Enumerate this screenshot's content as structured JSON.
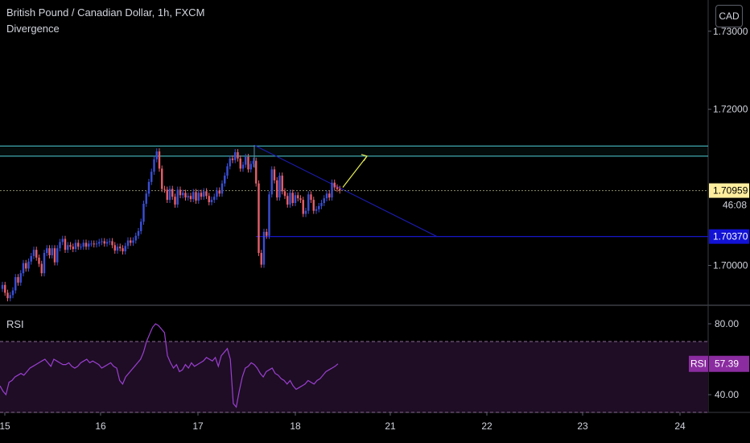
{
  "legend": {
    "symbol": "British Pound / Canadian Dollar, 1h, FXCM",
    "indicator": "Divergence"
  },
  "currency_button": "CAD",
  "rsi_pane": {
    "label": "RSI",
    "value_tag_name": "RSI",
    "value_tag_value": "57.39",
    "axis_ticks": [
      "80.00",
      "40.00"
    ]
  },
  "price_axis": {
    "ticks": [
      "1.73000",
      "1.72000",
      "1.70000"
    ],
    "last_price": "1.70959",
    "countdown": "46:08",
    "line_price": "1.70370"
  },
  "time_axis": {
    "ticks": [
      "15",
      "16",
      "17",
      "18",
      "21",
      "22",
      "23",
      "24"
    ]
  },
  "colors": {
    "up": "#3a4fd6",
    "down": "#e5606a",
    "resistance": "#4dd0d6",
    "trendline": "#1a1aa8",
    "support": "#1a1ae0",
    "projection_arrow": "#e6ee53",
    "rsi_line": "#9b3fd1",
    "rsi_band": "#1e0d24",
    "last_price_tag": "#ffee9e",
    "line_price_tag": "#1212d6",
    "rsi_tag": "#8b2ca0"
  },
  "chart_data": {
    "type": "candlestick",
    "symbol": "GBP/CAD",
    "timeframe": "1h",
    "ylim": [
      1.695,
      1.734
    ],
    "y_ticks": [
      1.73,
      1.72,
      1.7
    ],
    "last_price": 1.70959,
    "candles_close": [
      1.6975,
      1.6965,
      1.6958,
      1.6962,
      1.6968,
      1.6985,
      1.6978,
      1.699,
      1.7003,
      1.6996,
      1.7005,
      1.7012,
      1.702,
      1.701,
      1.7002,
      1.699,
      1.7016,
      1.7022,
      1.7013,
      1.7022,
      1.7004,
      1.7022,
      1.703,
      1.7034,
      1.702,
      1.7026,
      1.7024,
      1.7021,
      1.7029,
      1.7024,
      1.7024,
      1.7029,
      1.7024,
      1.7028,
      1.7028,
      1.7027,
      1.7028,
      1.703,
      1.7031,
      1.7028,
      1.703,
      1.7031,
      1.7026,
      1.7019,
      1.7024,
      1.7022,
      1.7018,
      1.7025,
      1.7032,
      1.7029,
      1.7032,
      1.7038,
      1.7044,
      1.7056,
      1.7079,
      1.7092,
      1.7107,
      1.712,
      1.7136,
      1.7146,
      1.7124,
      1.7098,
      1.7097,
      1.7084,
      1.7098,
      1.7088,
      1.7078,
      1.7097,
      1.709,
      1.7093,
      1.7087,
      1.7089,
      1.7085,
      1.7094,
      1.7083,
      1.7093,
      1.7088,
      1.7095,
      1.7089,
      1.7081,
      1.7084,
      1.7088,
      1.7096,
      1.7092,
      1.7105,
      1.7115,
      1.7127,
      1.7137,
      1.7135,
      1.7145,
      1.7137,
      1.7124,
      1.7129,
      1.7139,
      1.7123,
      1.713,
      1.7134,
      1.7105,
      1.7016,
      1.7001,
      1.7043,
      1.7038,
      1.7091,
      1.7123,
      1.7109,
      1.7087,
      1.7115,
      1.7095,
      1.7089,
      1.7078,
      1.7093,
      1.708,
      1.709,
      1.7086,
      1.7084,
      1.7066,
      1.707,
      1.7091,
      1.7084,
      1.707,
      1.7072,
      1.7076,
      1.708,
      1.7086,
      1.7092,
      1.7087,
      1.7106,
      1.71,
      1.7098,
      1.7096
    ],
    "annotations": {
      "resistance_zone": [
        1.714,
        1.7153
      ],
      "trendline": {
        "from_x_label": "17",
        "from_price": 1.7154,
        "to_x_label": "21",
        "to_price": 1.7037
      },
      "support_line": 1.7037,
      "projection_arrow": {
        "from_price": 1.71,
        "to_price": 1.714
      }
    },
    "rsi": {
      "ylim": [
        30,
        90
      ],
      "bands": [
        70,
        30
      ],
      "y_ticks": [
        80,
        40
      ],
      "last_value": 57.39,
      "values": [
        45,
        42,
        40,
        47,
        48,
        50,
        51,
        52,
        51,
        53,
        55,
        56,
        57,
        58,
        59,
        60,
        58,
        56,
        60,
        59,
        58,
        57,
        57,
        58,
        56,
        55,
        56,
        58,
        59,
        60,
        58,
        59,
        58,
        57,
        55,
        56,
        57,
        58,
        56,
        55,
        48,
        46,
        50,
        52,
        54,
        56,
        58,
        60,
        64,
        70,
        74,
        78,
        80,
        79,
        77,
        75,
        62,
        58,
        55,
        57,
        53,
        54,
        57,
        55,
        58,
        56,
        57,
        58,
        59,
        61,
        60,
        59,
        61,
        56,
        62,
        64,
        66,
        60,
        35,
        33,
        42,
        50,
        55,
        56,
        58,
        57,
        55,
        52,
        50,
        53,
        54,
        55,
        52,
        51,
        49,
        48,
        46,
        48,
        45,
        43,
        44,
        45,
        46,
        48,
        47,
        46,
        48,
        49,
        51,
        53,
        54,
        55,
        56,
        57.4
      ]
    }
  }
}
